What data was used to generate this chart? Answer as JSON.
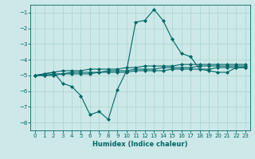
{
  "xlabel": "Humidex (Indice chaleur)",
  "ylabel": "",
  "background_color": "#cce8e8",
  "grid_color": "#aad4cc",
  "line_color": "#006666",
  "spine_color": "#006666",
  "xlim": [
    -0.5,
    23.5
  ],
  "ylim": [
    -8.5,
    -0.5
  ],
  "yticks": [
    -8,
    -7,
    -6,
    -5,
    -4,
    -3,
    -2,
    -1
  ],
  "xticks": [
    0,
    1,
    2,
    3,
    4,
    5,
    6,
    7,
    8,
    9,
    10,
    11,
    12,
    13,
    14,
    15,
    16,
    17,
    18,
    19,
    20,
    21,
    22,
    23
  ],
  "series": [
    {
      "x": [
        0,
        1,
        2,
        3,
        4,
        5,
        6,
        7,
        8,
        9,
        10,
        11,
        12,
        13,
        14,
        15,
        16,
        17,
        18,
        19,
        20,
        21,
        22,
        23
      ],
      "y": [
        -5.0,
        -4.9,
        -4.8,
        -5.5,
        -5.7,
        -6.3,
        -7.5,
        -7.3,
        -7.8,
        -5.9,
        -4.7,
        -1.6,
        -1.5,
        -0.8,
        -1.5,
        -2.7,
        -3.6,
        -3.8,
        -4.6,
        -4.7,
        -4.8,
        -4.8,
        -4.5,
        -4.5
      ]
    },
    {
      "x": [
        0,
        1,
        2,
        3,
        4,
        5,
        6,
        7,
        8,
        9,
        10,
        11,
        12,
        13,
        14,
        15,
        16,
        17,
        18,
        19,
        20,
        21,
        22,
        23
      ],
      "y": [
        -5.0,
        -4.9,
        -4.8,
        -4.7,
        -4.7,
        -4.7,
        -4.6,
        -4.6,
        -4.6,
        -4.6,
        -4.5,
        -4.5,
        -4.4,
        -4.4,
        -4.4,
        -4.4,
        -4.3,
        -4.3,
        -4.3,
        -4.3,
        -4.3,
        -4.3,
        -4.3,
        -4.3
      ]
    },
    {
      "x": [
        0,
        1,
        2,
        3,
        4,
        5,
        6,
        7,
        8,
        9,
        10,
        11,
        12,
        13,
        14,
        15,
        16,
        17,
        18,
        19,
        20,
        21,
        22,
        23
      ],
      "y": [
        -5.0,
        -5.0,
        -4.9,
        -4.9,
        -4.8,
        -4.8,
        -4.8,
        -4.8,
        -4.7,
        -4.7,
        -4.7,
        -4.6,
        -4.6,
        -4.6,
        -4.5,
        -4.5,
        -4.5,
        -4.5,
        -4.4,
        -4.4,
        -4.4,
        -4.4,
        -4.4,
        -4.4
      ]
    },
    {
      "x": [
        0,
        1,
        2,
        3,
        4,
        5,
        6,
        7,
        8,
        9,
        10,
        11,
        12,
        13,
        14,
        15,
        16,
        17,
        18,
        19,
        20,
        21,
        22,
        23
      ],
      "y": [
        -5.0,
        -5.0,
        -5.0,
        -4.9,
        -4.9,
        -4.9,
        -4.9,
        -4.8,
        -4.8,
        -4.8,
        -4.8,
        -4.7,
        -4.7,
        -4.7,
        -4.7,
        -4.6,
        -4.6,
        -4.6,
        -4.6,
        -4.6,
        -4.5,
        -4.5,
        -4.5,
        -4.5
      ]
    }
  ],
  "marker": "D",
  "markersize": 2.0,
  "linewidth": 0.8,
  "tick_labelsize": 5.0,
  "xlabel_fontsize": 6.0,
  "fig_width": 3.2,
  "fig_height": 2.0,
  "dpi": 100
}
